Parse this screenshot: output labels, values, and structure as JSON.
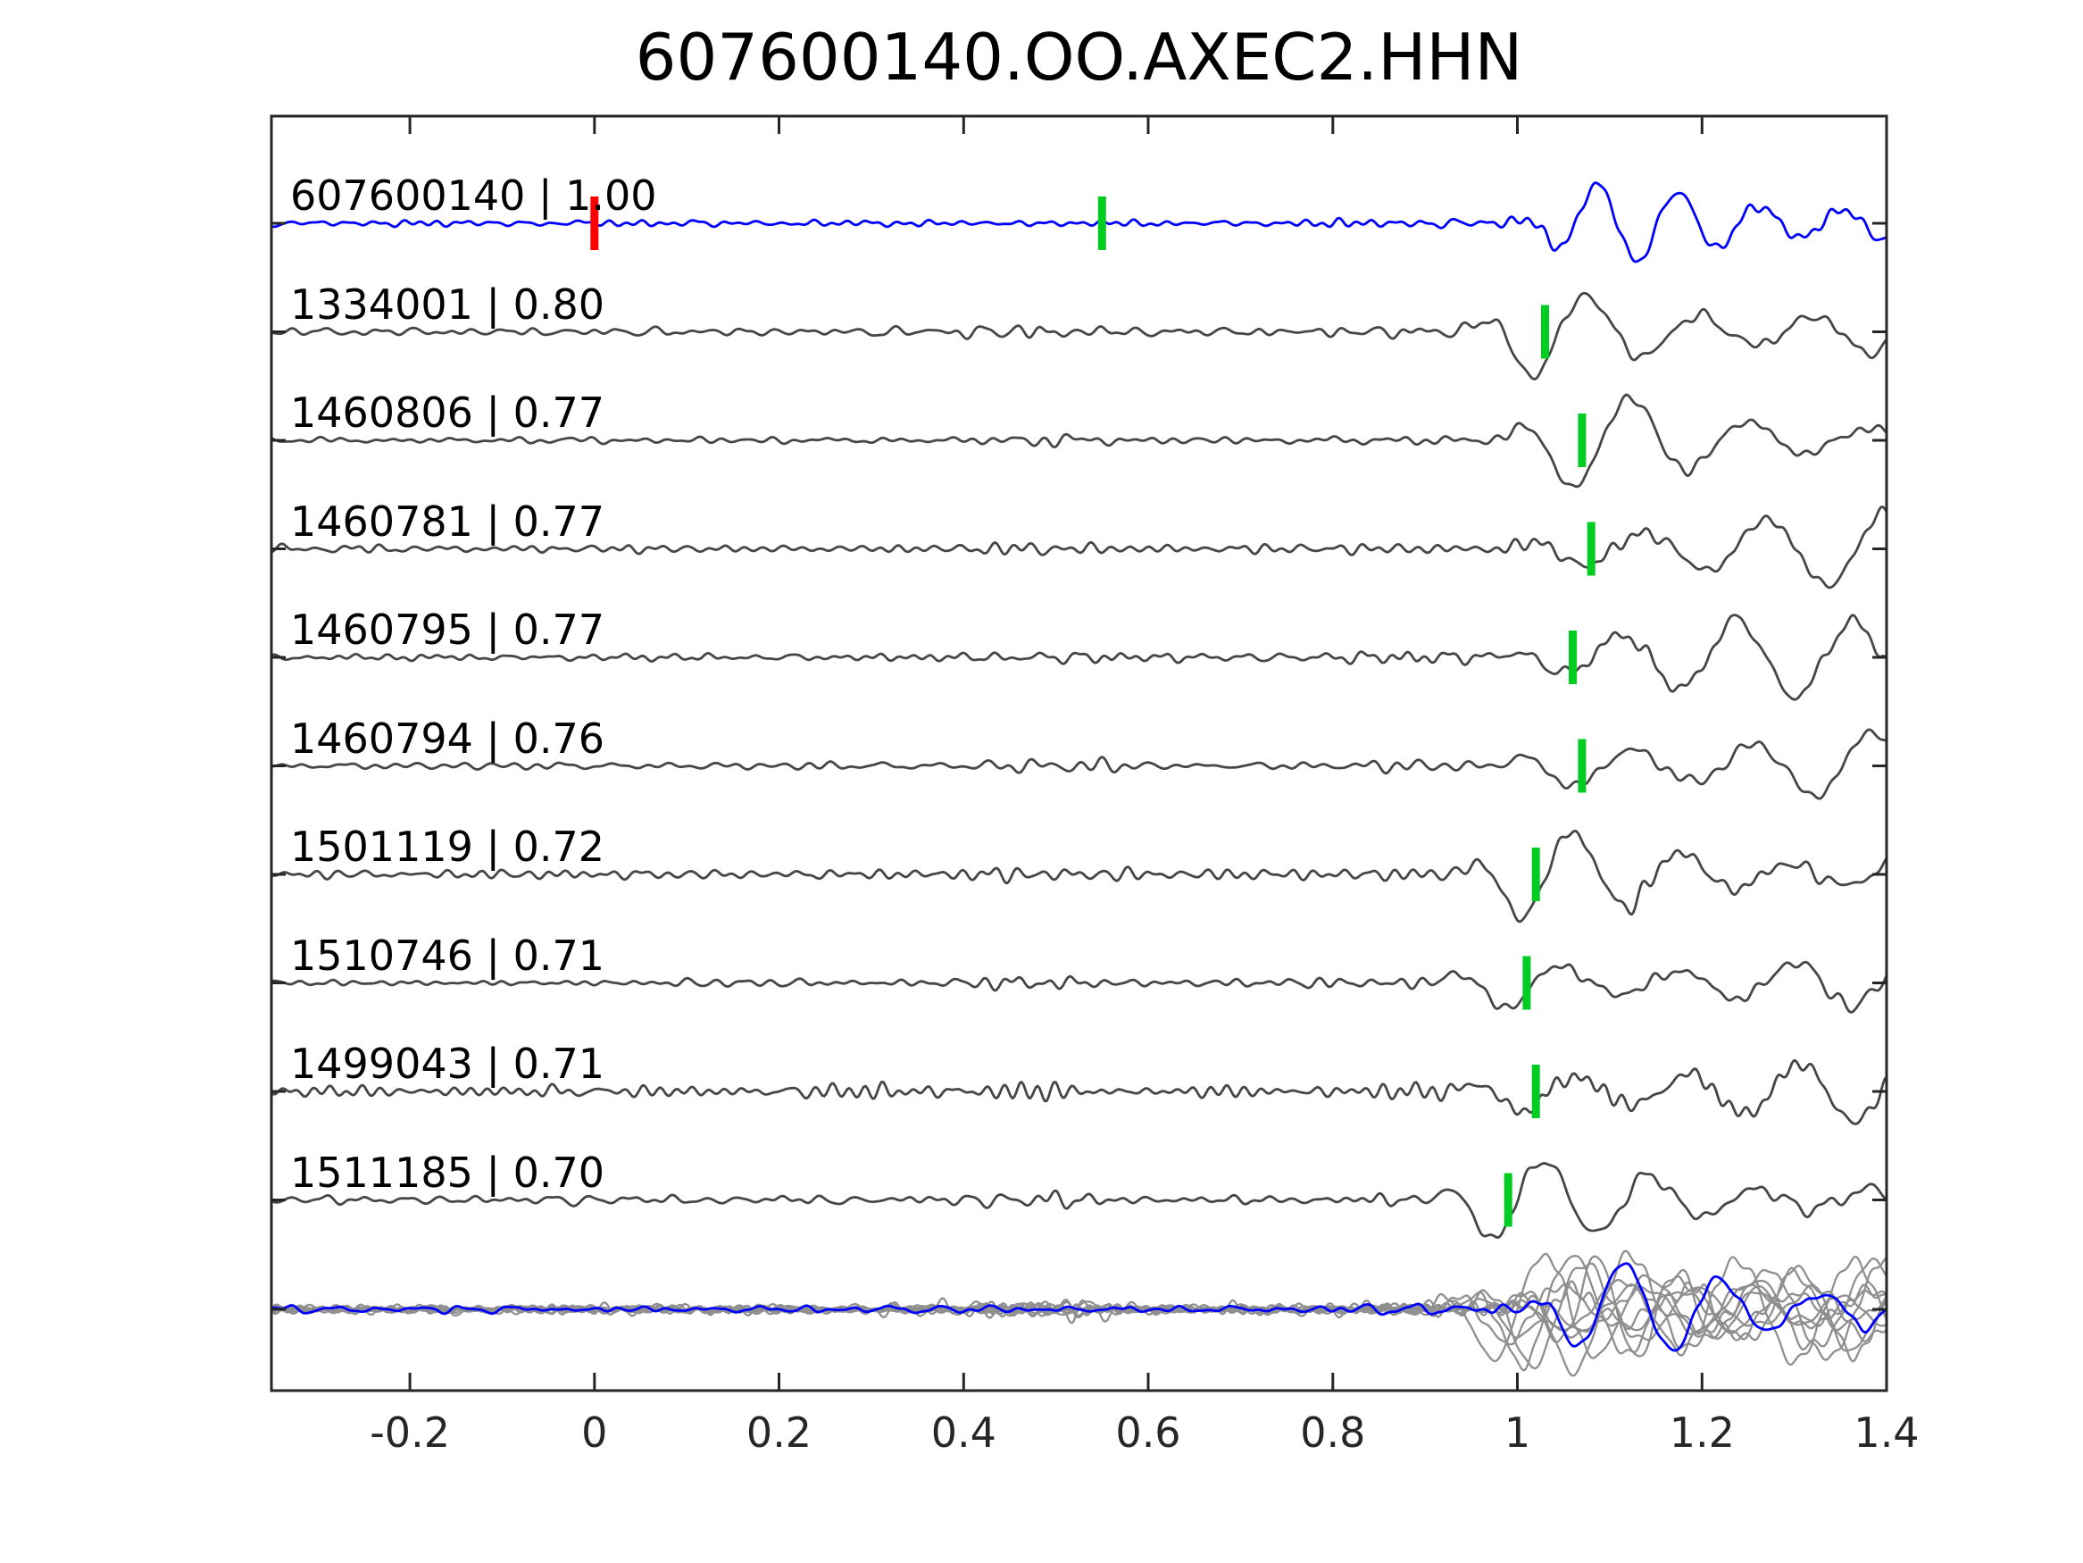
{
  "chart_data": {
    "type": "line",
    "title": "607600140.OO.AXEC2.HHN",
    "x_axis": {
      "min": -0.35,
      "max": 1.4,
      "ticks": [
        -0.2,
        0,
        0.2,
        0.4,
        0.6,
        0.8,
        1.0,
        1.2,
        1.4
      ],
      "tick_labels": [
        "-0.2",
        "0",
        "0.2",
        "0.4",
        "0.6",
        "0.8",
        "1",
        "1.2",
        "1.4"
      ]
    },
    "colors": {
      "template_blue": "#0000ff",
      "detection_gray": "#464646",
      "overlay_gray": "#8f8f8f",
      "pick_green": "#00cc22",
      "template_pick_red": "#ff0000",
      "axis": "#262626",
      "text": "#000000",
      "background": "#ffffff"
    },
    "traces": [
      {
        "label": "607600140 | 1.00",
        "id": "607600140",
        "correlation": "1.00",
        "role": "template",
        "color": "#0000ff",
        "pick_time": 0.55,
        "template_time": 0.0,
        "synth": {
          "seed": 101,
          "noise": 5,
          "bump_amp": 0,
          "bump_c": 0.5,
          "bump_w": 0.09,
          "onset": 0.98,
          "rise": 0.12,
          "decay": 0.18,
          "amp": 44,
          "freq": 11.3
        }
      },
      {
        "label": "1334001 | 0.80",
        "id": "1334001",
        "correlation": "0.80",
        "role": "detection",
        "color": "#464646",
        "pick_time": 1.03,
        "synth": {
          "seed": 202,
          "noise": 6,
          "bump_amp": 8,
          "bump_c": 0.47,
          "bump_w": 0.08,
          "onset": 0.93,
          "rise": 0.1,
          "decay": 1.0,
          "amp": 56,
          "freq": 8.2
        }
      },
      {
        "label": "1460806 | 0.77",
        "id": "1460806",
        "correlation": "0.77",
        "role": "detection",
        "color": "#464646",
        "pick_time": 1.07,
        "synth": {
          "seed": 303,
          "noise": 6,
          "bump_amp": 7,
          "bump_c": 0.5,
          "bump_w": 0.08,
          "onset": 0.97,
          "rise": 0.1,
          "decay": 1.0,
          "amp": 57,
          "freq": 7.8
        }
      },
      {
        "label": "1460781 | 0.77",
        "id": "1460781",
        "correlation": "0.77",
        "role": "detection",
        "color": "#464646",
        "pick_time": 1.08,
        "synth": {
          "seed": 404,
          "noise": 6,
          "bump_amp": 6,
          "bump_c": 0.5,
          "bump_w": 0.08,
          "onset": 0.98,
          "rise": 0.1,
          "decay": 1.0,
          "amp": 57,
          "freq": 7.6
        }
      },
      {
        "label": "1460795 | 0.77",
        "id": "1460795",
        "correlation": "0.77",
        "role": "detection",
        "color": "#464646",
        "pick_time": 1.06,
        "synth": {
          "seed": 505,
          "noise": 6,
          "bump_amp": 7,
          "bump_c": 0.48,
          "bump_w": 0.08,
          "onset": 0.96,
          "rise": 0.1,
          "decay": 1.0,
          "amp": 56,
          "freq": 7.9
        }
      },
      {
        "label": "1460794 | 0.76",
        "id": "1460794",
        "correlation": "0.76",
        "role": "detection",
        "color": "#464646",
        "pick_time": 1.07,
        "synth": {
          "seed": 606,
          "noise": 6,
          "bump_amp": 8,
          "bump_c": 0.49,
          "bump_w": 0.08,
          "onset": 0.97,
          "rise": 0.1,
          "decay": 1.0,
          "amp": 56,
          "freq": 7.7
        }
      },
      {
        "label": "1501119 | 0.72",
        "id": "1501119",
        "correlation": "0.72",
        "role": "detection",
        "color": "#464646",
        "pick_time": 1.02,
        "synth": {
          "seed": 707,
          "noise": 8,
          "bump_amp": 9,
          "bump_c": 0.52,
          "bump_w": 0.1,
          "onset": 0.92,
          "rise": 0.1,
          "decay": 1.2,
          "amp": 52,
          "freq": 8.5
        }
      },
      {
        "label": "1510746 | 0.71",
        "id": "1510746",
        "correlation": "0.71",
        "role": "detection",
        "color": "#464646",
        "pick_time": 1.01,
        "synth": {
          "seed": 808,
          "noise": 6,
          "bump_amp": 14,
          "bump_c": 0.47,
          "bump_w": 0.06,
          "onset": 0.9,
          "rise": 0.1,
          "decay": 1.5,
          "amp": 50,
          "freq": 8.0
        }
      },
      {
        "label": "1499043 | 0.71",
        "id": "1499043",
        "correlation": "0.71",
        "role": "detection",
        "color": "#464646",
        "pick_time": 1.02,
        "synth": {
          "seed": 909,
          "noise": 9,
          "bump_amp": 10,
          "bump_c": 0.4,
          "bump_w": 0.12,
          "onset": 0.92,
          "rise": 0.1,
          "decay": 1.2,
          "amp": 52,
          "freq": 8.3
        }
      },
      {
        "label": "1511185 | 0.70",
        "id": "1511185",
        "correlation": "0.70",
        "role": "detection",
        "color": "#464646",
        "pick_time": 0.99,
        "synth": {
          "seed": 1010,
          "noise": 7,
          "bump_amp": 14,
          "bump_c": 0.48,
          "bump_w": 0.07,
          "onset": 0.89,
          "rise": 0.1,
          "decay": 1.3,
          "amp": 50,
          "freq": 8.6
        }
      }
    ],
    "overlay_row": {
      "gray_trace_count": 10,
      "includes_template_blue": true
    }
  }
}
